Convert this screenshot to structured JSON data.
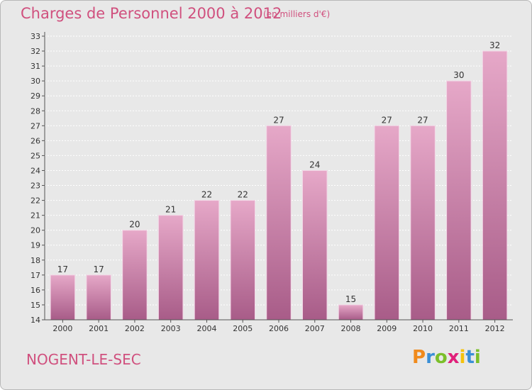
{
  "title": "Charges de Personnel 2000 à 2012",
  "subtitle": "(en milliers d'€)",
  "commune": "NOGENT-LE-SEC",
  "logo_text": "Proxiti",
  "colors": {
    "bar": "#c97aa6",
    "bar_light": "#e6a8c8",
    "bar_dark": "#a85c88",
    "text": "#d0507e"
  },
  "chart_data": {
    "type": "bar",
    "title": "Charges de Personnel 2000 à 2012",
    "subtitle": "(en milliers d'€)",
    "xlabel": "",
    "ylabel": "",
    "categories": [
      "2000",
      "2001",
      "2002",
      "2003",
      "2004",
      "2005",
      "2006",
      "2007",
      "2008",
      "2009",
      "2010",
      "2011",
      "2012"
    ],
    "values": [
      17,
      17,
      20,
      21,
      22,
      22,
      27,
      24,
      15,
      27,
      27,
      30,
      32
    ],
    "ylim": [
      14,
      33
    ],
    "yticks": [
      14,
      15,
      16,
      17,
      18,
      19,
      20,
      21,
      22,
      23,
      24,
      25,
      26,
      27,
      28,
      29,
      30,
      31,
      32,
      33
    ],
    "grid": true
  }
}
